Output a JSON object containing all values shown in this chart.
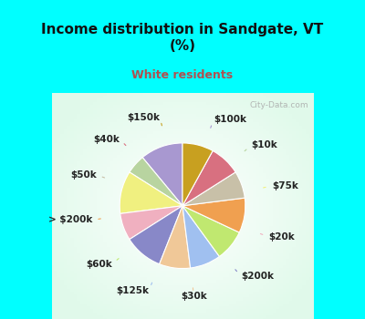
{
  "title": "Income distribution in Sandgate, VT\n(%)",
  "subtitle": "White residents",
  "title_color": "#111111",
  "subtitle_color": "#b05050",
  "bg_cyan": "#00ffff",
  "labels": [
    "$100k",
    "$10k",
    "$75k",
    "$20k",
    "$200k",
    "$30k",
    "$125k",
    "$60k",
    "> $200k",
    "$50k",
    "$40k",
    "$150k"
  ],
  "values": [
    11,
    5,
    11,
    7,
    10,
    8,
    8,
    8,
    9,
    7,
    8,
    8
  ],
  "colors": [
    "#a898d0",
    "#b8d4a0",
    "#f0f080",
    "#f0b0c0",
    "#8888c8",
    "#f0c898",
    "#a0c0f0",
    "#c0e870",
    "#f0a050",
    "#c8c0a8",
    "#d87080",
    "#c8a020"
  ],
  "label_fontsize": 7.5,
  "figsize": [
    4.0,
    3.5
  ],
  "dpi": 100,
  "startangle": 90,
  "watermark": "City-Data.com",
  "title_fontsize": 11,
  "subtitle_fontsize": 9
}
